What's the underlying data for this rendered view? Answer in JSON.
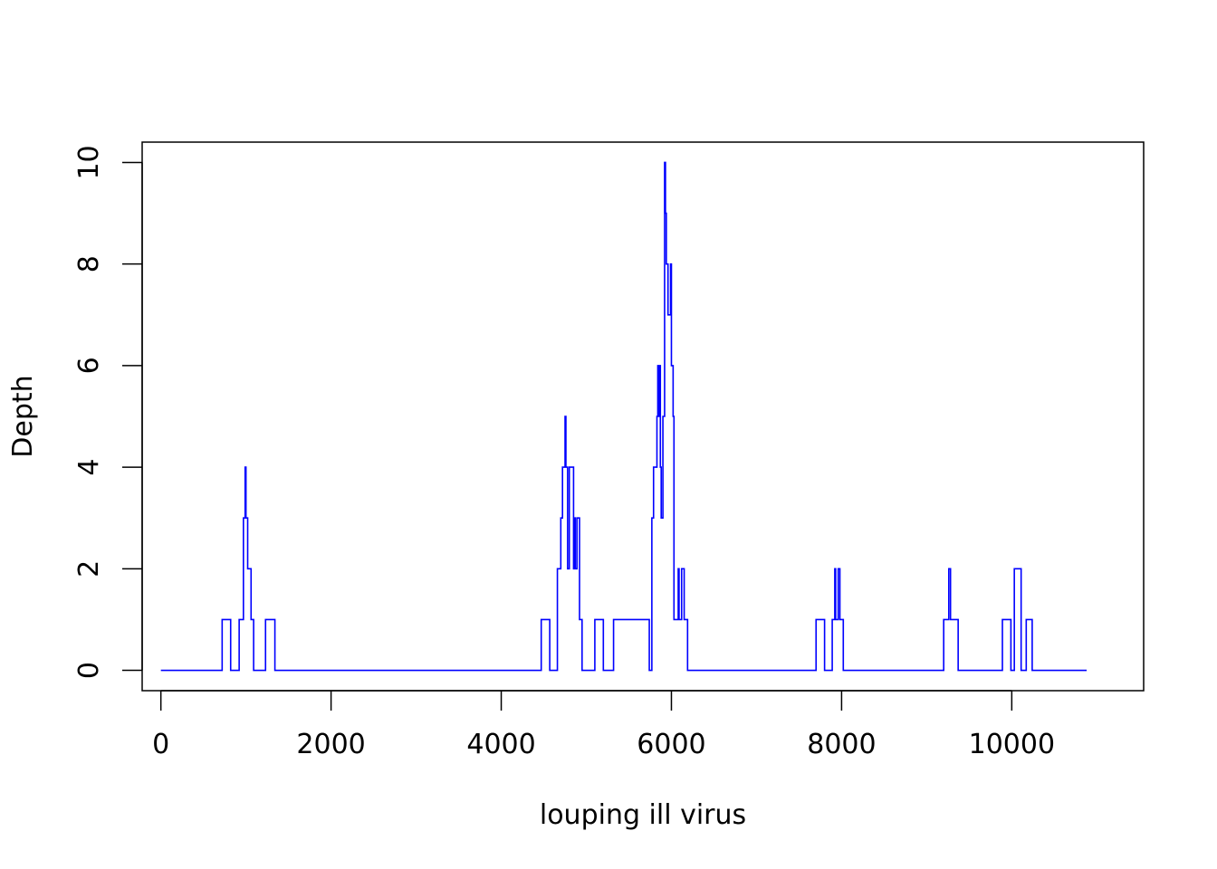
{
  "chart_data": {
    "type": "line",
    "title": "",
    "xlabel": "louping ill virus",
    "ylabel": "Depth",
    "xlim": [
      -220,
      11550
    ],
    "ylim": [
      -0.4,
      10.4
    ],
    "xticks": [
      0,
      2000,
      4000,
      6000,
      8000,
      10000
    ],
    "xtick_labels": [
      "0",
      "2000",
      "4000",
      "6000",
      "8000",
      "10000"
    ],
    "yticks": [
      0,
      2,
      4,
      6,
      8,
      10
    ],
    "ytick_labels": [
      "0",
      "2",
      "4",
      "6",
      "8",
      "10"
    ],
    "grid": false,
    "legend": "none",
    "series": [
      {
        "color": "#0000ff",
        "step": true,
        "x": [
          0,
          720,
          820,
          920,
          970,
          990,
          1000,
          1010,
          1020,
          1060,
          1070,
          1090,
          1230,
          1340,
          4470,
          4570,
          4660,
          4700,
          4720,
          4750,
          4760,
          4780,
          4800,
          4850,
          4860,
          4870,
          4890,
          4920,
          4950,
          4990,
          5100,
          5200,
          5320,
          5740,
          5770,
          5790,
          5830,
          5840,
          5850,
          5860,
          5870,
          5880,
          5900,
          5920,
          5930,
          5940,
          5960,
          5990,
          6000,
          6020,
          6030,
          6050,
          6080,
          6090,
          6100,
          6120,
          6150,
          6170,
          6190,
          6260,
          7700,
          7800,
          7890,
          7920,
          7930,
          7960,
          7980,
          7990,
          8020,
          8100,
          9200,
          9260,
          9280,
          9300,
          9370,
          9890,
          9990,
          10030,
          10060,
          10110,
          10170,
          10240,
          10880
        ],
        "y": [
          0,
          1,
          0,
          1,
          3,
          4,
          3,
          3,
          2,
          1,
          1,
          0,
          1,
          0,
          1,
          0,
          2,
          3,
          4,
          5,
          4,
          2,
          4,
          2,
          3,
          2,
          3,
          1,
          0,
          0,
          1,
          0,
          1,
          0,
          3,
          4,
          5,
          6,
          5,
          6,
          4,
          3,
          5,
          10,
          9,
          8,
          7,
          8,
          6,
          5,
          1,
          1,
          2,
          1,
          1,
          2,
          1,
          1,
          0,
          0,
          1,
          0,
          1,
          2,
          1,
          2,
          1,
          1,
          0,
          0,
          1,
          2,
          1,
          1,
          0,
          1,
          0,
          2,
          2,
          0,
          1,
          0,
          0
        ]
      }
    ]
  }
}
